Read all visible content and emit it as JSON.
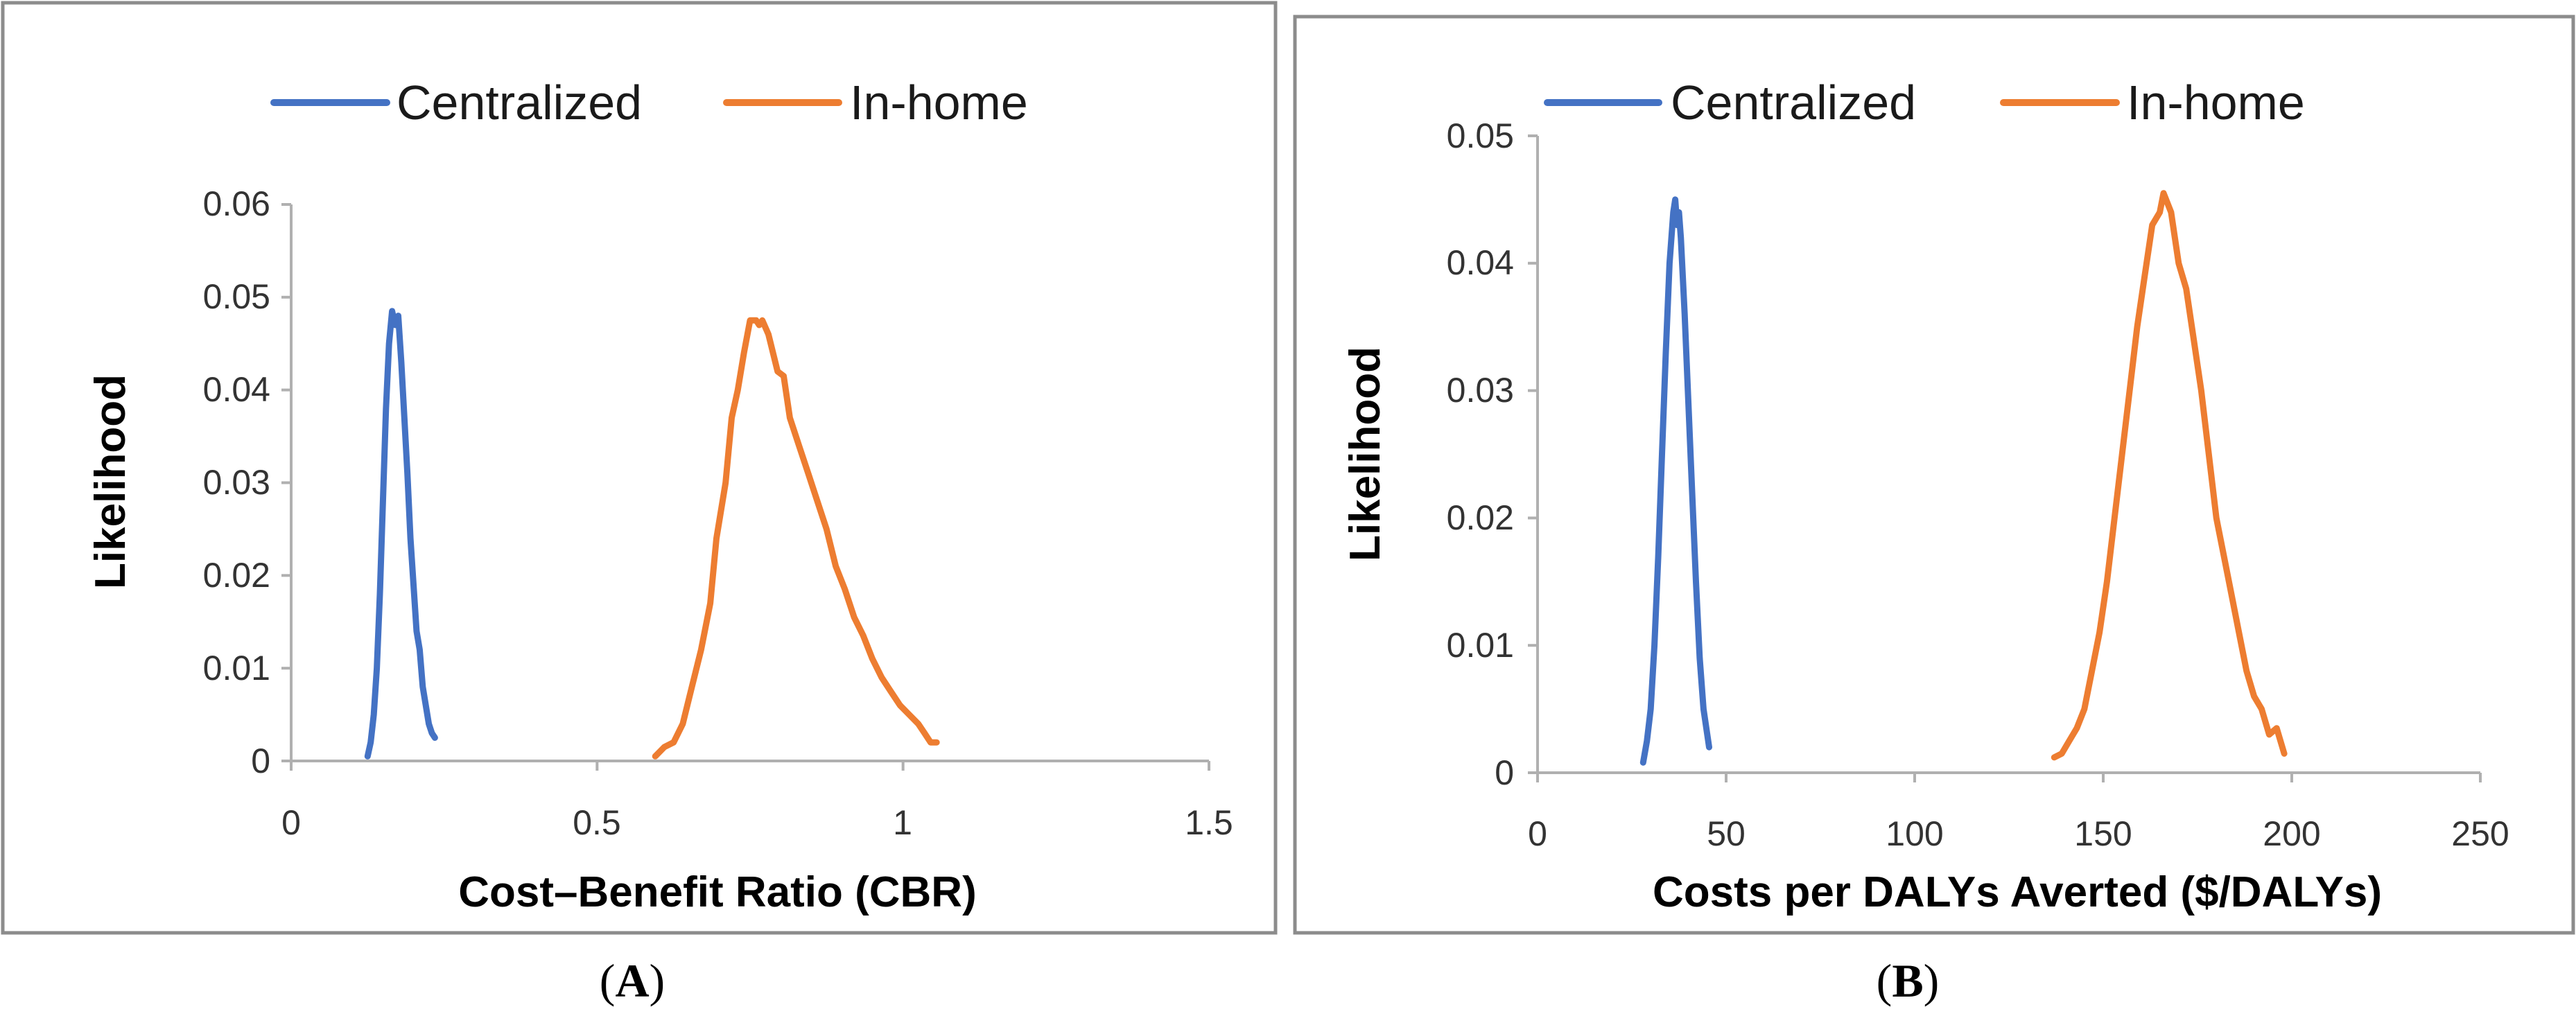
{
  "figure": {
    "background": "#ffffff"
  },
  "chart_data": [
    {
      "panel": "A",
      "type": "line",
      "caption_open": "(",
      "caption_letter": "A",
      "caption_close": ")",
      "xlabel": "Cost–Benefit Ratio (CBR)",
      "ylabel": "Likelihood",
      "xlim": [
        0,
        1.5
      ],
      "ylim": [
        0,
        0.06
      ],
      "xticks": [
        0,
        0.5,
        1,
        1.5
      ],
      "xtick_labels": [
        "0",
        "0.5",
        "1",
        "1.5"
      ],
      "yticks": [
        0,
        0.01,
        0.02,
        0.03,
        0.04,
        0.05,
        0.06
      ],
      "ytick_labels": [
        "0",
        "0.01",
        "0.02",
        "0.03",
        "0.04",
        "0.05",
        "0.06"
      ],
      "legend_position": "top",
      "series": [
        {
          "name": "Centralized",
          "color": "#4472c4",
          "points": [
            [
              0.125,
              0.0005
            ],
            [
              0.13,
              0.002
            ],
            [
              0.135,
              0.005
            ],
            [
              0.14,
              0.01
            ],
            [
              0.145,
              0.018
            ],
            [
              0.15,
              0.028
            ],
            [
              0.155,
              0.038
            ],
            [
              0.16,
              0.045
            ],
            [
              0.165,
              0.0485
            ],
            [
              0.17,
              0.047
            ],
            [
              0.175,
              0.048
            ],
            [
              0.18,
              0.043
            ],
            [
              0.185,
              0.037
            ],
            [
              0.19,
              0.031
            ],
            [
              0.195,
              0.024
            ],
            [
              0.2,
              0.019
            ],
            [
              0.205,
              0.014
            ],
            [
              0.21,
              0.012
            ],
            [
              0.215,
              0.008
            ],
            [
              0.22,
              0.006
            ],
            [
              0.225,
              0.004
            ],
            [
              0.23,
              0.003
            ],
            [
              0.235,
              0.0025
            ]
          ]
        },
        {
          "name": "In-home",
          "color": "#ed7d31",
          "points": [
            [
              0.595,
              0.0005
            ],
            [
              0.61,
              0.0015
            ],
            [
              0.625,
              0.002
            ],
            [
              0.64,
              0.004
            ],
            [
              0.655,
              0.008
            ],
            [
              0.67,
              0.012
            ],
            [
              0.685,
              0.017
            ],
            [
              0.695,
              0.024
            ],
            [
              0.71,
              0.03
            ],
            [
              0.72,
              0.037
            ],
            [
              0.73,
              0.04
            ],
            [
              0.74,
              0.044
            ],
            [
              0.75,
              0.0475
            ],
            [
              0.76,
              0.0475
            ],
            [
              0.765,
              0.047
            ],
            [
              0.77,
              0.0475
            ],
            [
              0.78,
              0.046
            ],
            [
              0.795,
              0.042
            ],
            [
              0.805,
              0.0415
            ],
            [
              0.815,
              0.037
            ],
            [
              0.83,
              0.034
            ],
            [
              0.845,
              0.031
            ],
            [
              0.86,
              0.028
            ],
            [
              0.875,
              0.025
            ],
            [
              0.89,
              0.021
            ],
            [
              0.905,
              0.0185
            ],
            [
              0.92,
              0.0155
            ],
            [
              0.935,
              0.0135
            ],
            [
              0.95,
              0.011
            ],
            [
              0.965,
              0.009
            ],
            [
              0.98,
              0.0075
            ],
            [
              0.995,
              0.006
            ],
            [
              1.01,
              0.005
            ],
            [
              1.025,
              0.004
            ],
            [
              1.035,
              0.003
            ],
            [
              1.045,
              0.002
            ],
            [
              1.055,
              0.002
            ]
          ]
        }
      ]
    },
    {
      "panel": "B",
      "type": "line",
      "caption_open": "(",
      "caption_letter": "B",
      "caption_close": ")",
      "xlabel": "Costs per DALYs Averted ($/DALYs)",
      "ylabel": "Likelihood",
      "xlim": [
        0,
        250
      ],
      "ylim": [
        0,
        0.05
      ],
      "xticks": [
        0,
        50,
        100,
        150,
        200,
        250
      ],
      "xtick_labels": [
        "0",
        "50",
        "100",
        "150",
        "200",
        "250"
      ],
      "yticks": [
        0,
        0.01,
        0.02,
        0.03,
        0.04,
        0.05
      ],
      "ytick_labels": [
        "0",
        "0.01",
        "0.02",
        "0.03",
        "0.04",
        "0.05"
      ],
      "legend_position": "top",
      "series": [
        {
          "name": "Centralized",
          "color": "#4472c4",
          "points": [
            [
              28,
              0.0008
            ],
            [
              29,
              0.0025
            ],
            [
              30,
              0.005
            ],
            [
              31,
              0.01
            ],
            [
              32,
              0.017
            ],
            [
              33,
              0.025
            ],
            [
              34,
              0.033
            ],
            [
              35,
              0.04
            ],
            [
              36,
              0.044
            ],
            [
              36.5,
              0.045
            ],
            [
              37,
              0.043
            ],
            [
              37.5,
              0.044
            ],
            [
              38,
              0.042
            ],
            [
              39,
              0.036
            ],
            [
              40,
              0.029
            ],
            [
              41,
              0.022
            ],
            [
              42,
              0.015
            ],
            [
              43,
              0.009
            ],
            [
              44,
              0.005
            ],
            [
              45,
              0.003
            ],
            [
              45.5,
              0.002
            ]
          ]
        },
        {
          "name": "In-home",
          "color": "#ed7d31",
          "points": [
            [
              137,
              0.0012
            ],
            [
              139,
              0.0015
            ],
            [
              141,
              0.0025
            ],
            [
              143,
              0.0035
            ],
            [
              145,
              0.005
            ],
            [
              147,
              0.008
            ],
            [
              149,
              0.011
            ],
            [
              151,
              0.015
            ],
            [
              153,
              0.02
            ],
            [
              155,
              0.025
            ],
            [
              157,
              0.03
            ],
            [
              159,
              0.035
            ],
            [
              161,
              0.039
            ],
            [
              163,
              0.043
            ],
            [
              165,
              0.044
            ],
            [
              166,
              0.0455
            ],
            [
              168,
              0.044
            ],
            [
              170,
              0.04
            ],
            [
              172,
              0.038
            ],
            [
              174,
              0.034
            ],
            [
              176,
              0.03
            ],
            [
              178,
              0.025
            ],
            [
              180,
              0.02
            ],
            [
              182,
              0.017
            ],
            [
              184,
              0.014
            ],
            [
              186,
              0.011
            ],
            [
              188,
              0.008
            ],
            [
              190,
              0.006
            ],
            [
              192,
              0.005
            ],
            [
              194,
              0.003
            ],
            [
              196,
              0.0035
            ],
            [
              198,
              0.0015
            ]
          ]
        }
      ]
    }
  ]
}
